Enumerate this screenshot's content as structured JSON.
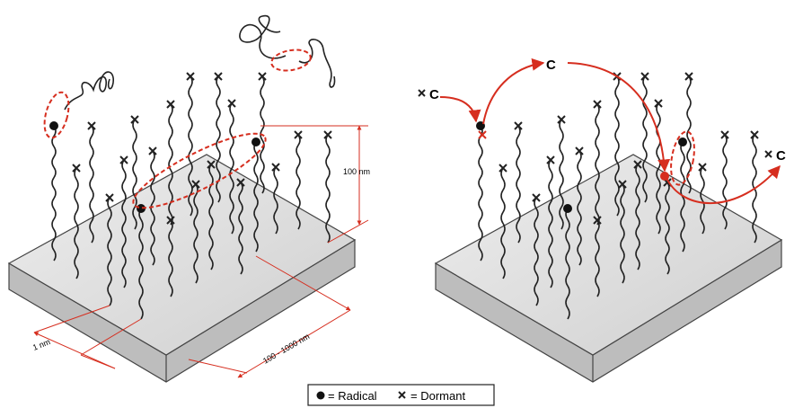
{
  "left_panel": {
    "height_label": "100 nm",
    "spacing_label": "1 nm",
    "width_label": "100 - 1000 nm"
  },
  "right_panel": {
    "labels": [
      "C",
      "C",
      "C"
    ]
  },
  "legend": {
    "radical": "= Radical",
    "dormant": "= Dormant"
  }
}
